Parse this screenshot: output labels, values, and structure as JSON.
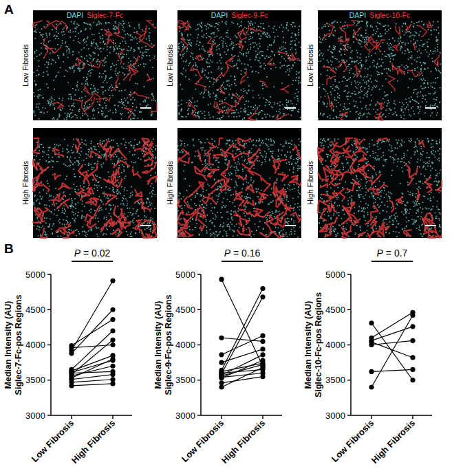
{
  "figure": {
    "panel_labels": [
      "A",
      "B"
    ],
    "image_panels": [
      {
        "header": [
          "DAPI",
          "Siglec-7-Fc"
        ],
        "header_colors": [
          "#6fe0e0",
          "#ff3b3b"
        ],
        "rows": [
          "Low Fibrosis",
          "High Fibrosis"
        ]
      },
      {
        "header": [
          "DAPI",
          "Siglec-9-Fc"
        ],
        "header_colors": [
          "#6fe0e0",
          "#ff3b3b"
        ],
        "rows": [
          "Low Fibrosis",
          "High Fibrosis"
        ]
      },
      {
        "header": [
          "DAPI",
          "Siglec-10-Fc"
        ],
        "header_colors": [
          "#6fe0e0",
          "#ff3b3b"
        ],
        "rows": [
          "Low Fibrosis",
          "High Fibrosis"
        ]
      }
    ]
  },
  "chart_data": [
    {
      "type": "line",
      "marker": "circle",
      "color": "#000000",
      "categories": [
        "Low Fibrosis",
        "High Fibrosis"
      ],
      "y_label": [
        "Median Intensity (AU)",
        "Siglec-7-Fc-pos Regions"
      ],
      "annotation": "P = 0.02",
      "ylim": [
        3000,
        5000
      ],
      "yticks": [
        3000,
        3500,
        4000,
        4500,
        5000
      ],
      "series": [
        {
          "values": [
            3990,
            4360
          ]
        },
        {
          "values": [
            3960,
            4000
          ]
        },
        {
          "values": [
            3920,
            4910
          ]
        },
        {
          "values": [
            3880,
            4500
          ]
        },
        {
          "values": [
            3650,
            4200
          ]
        },
        {
          "values": [
            3630,
            3850
          ]
        },
        {
          "values": [
            3610,
            3780
          ]
        },
        {
          "values": [
            3600,
            3620
          ]
        },
        {
          "values": [
            3580,
            4070
          ]
        },
        {
          "values": [
            3560,
            3700
          ]
        },
        {
          "values": [
            3530,
            3800
          ]
        },
        {
          "values": [
            3510,
            3580
          ]
        },
        {
          "values": [
            3470,
            3510
          ]
        },
        {
          "values": [
            3420,
            3450
          ]
        }
      ]
    },
    {
      "type": "line",
      "marker": "circle",
      "color": "#000000",
      "categories": [
        "Low Fibrosis",
        "High Fibrosis"
      ],
      "y_label": [
        "Median Intensity (AU)",
        "Siglec-9-Fc-pos Regions"
      ],
      "annotation": "P = 0.16",
      "ylim": [
        3000,
        5000
      ],
      "yticks": [
        3000,
        3500,
        4000,
        4500,
        5000
      ],
      "series": [
        {
          "values": [
            4930,
            3700
          ]
        },
        {
          "values": [
            4100,
            4050
          ]
        },
        {
          "values": [
            3860,
            4130
          ]
        },
        {
          "values": [
            3750,
            3940
          ]
        },
        {
          "values": [
            3640,
            4800
          ]
        },
        {
          "values": [
            3620,
            3740
          ]
        },
        {
          "values": [
            3600,
            3650
          ]
        },
        {
          "values": [
            3590,
            4680
          ]
        },
        {
          "values": [
            3570,
            3860
          ]
        },
        {
          "values": [
            3560,
            3720
          ]
        },
        {
          "values": [
            3540,
            3600
          ]
        },
        {
          "values": [
            3530,
            3780
          ]
        },
        {
          "values": [
            3460,
            3550
          ]
        },
        {
          "values": [
            3400,
            3680
          ]
        }
      ]
    },
    {
      "type": "line",
      "marker": "circle",
      "color": "#000000",
      "categories": [
        "Low Fibrosis",
        "High Fibrosis"
      ],
      "y_label": [
        "Median Intensity (AU)",
        "Siglec-10-Fc-pos Regions"
      ],
      "annotation": "P = 0.7",
      "ylim": [
        3000,
        5000
      ],
      "yticks": [
        3000,
        3500,
        4000,
        4500,
        5000
      ],
      "series": [
        {
          "values": [
            4310,
            3500
          ]
        },
        {
          "values": [
            4100,
            4460
          ]
        },
        {
          "values": [
            4060,
            4260
          ]
        },
        {
          "values": [
            4040,
            3820
          ]
        },
        {
          "values": [
            4000,
            4060
          ]
        },
        {
          "values": [
            3620,
            3650
          ]
        },
        {
          "values": [
            3400,
            4420
          ]
        }
      ]
    }
  ]
}
